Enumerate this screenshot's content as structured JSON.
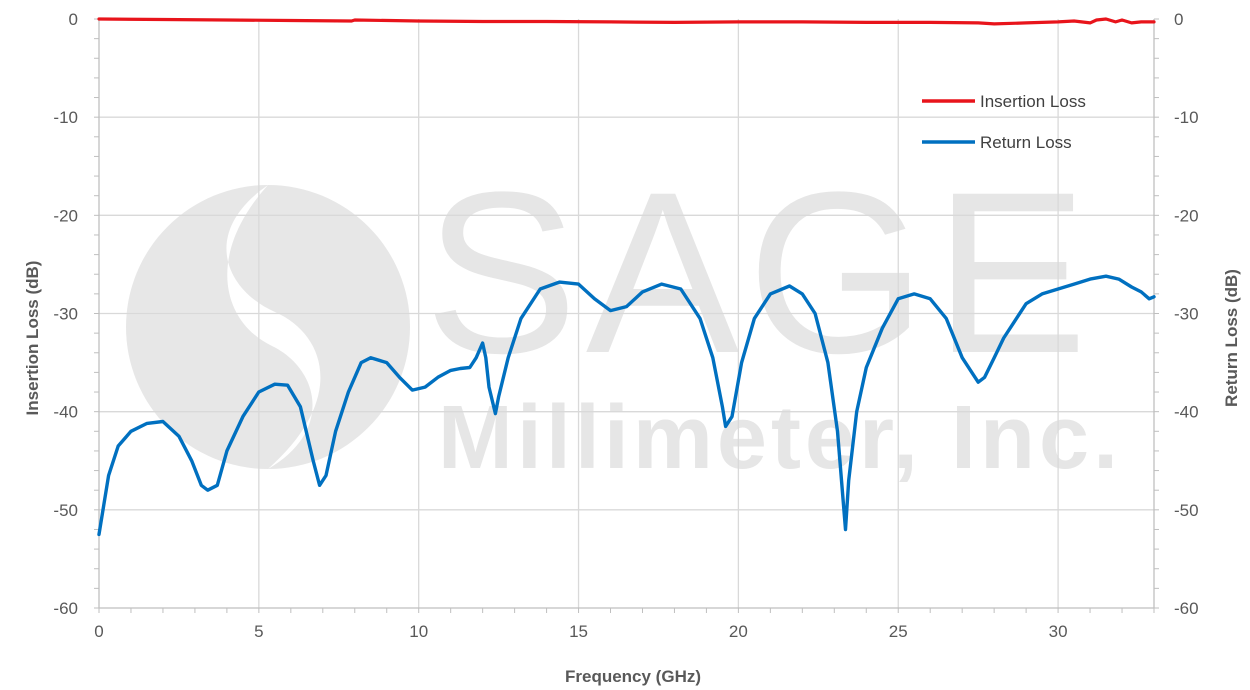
{
  "chart_data": {
    "type": "line",
    "title": "",
    "xlabel": "Frequency (GHz)",
    "ylabel_left": "Insertion Loss (dB)",
    "ylabel_right": "Return Loss (dB)",
    "xlim": [
      0,
      33
    ],
    "ylim": [
      -60,
      0
    ],
    "x_ticks": [
      "0",
      "5",
      "10",
      "15",
      "20",
      "25",
      "30"
    ],
    "y_ticks": [
      "0",
      "-10",
      "-20",
      "-30",
      "-40",
      "-50",
      "-60"
    ],
    "grid": true,
    "legend_position": "top-right",
    "watermark": {
      "line1": "SAGE",
      "line2": "Millimeter, Inc."
    },
    "series": [
      {
        "name": "Insertion Loss",
        "color": "#E8141B",
        "axis": "left",
        "x": [
          0,
          2,
          4,
          6,
          7.9,
          8,
          10,
          12,
          14,
          16,
          18,
          20,
          22,
          24,
          26,
          27.5,
          28,
          29,
          30,
          30.5,
          31,
          31.2,
          31.5,
          31.8,
          32,
          32.3,
          32.6,
          33
        ],
        "y": [
          0,
          -0.05,
          -0.1,
          -0.15,
          -0.2,
          -0.1,
          -0.2,
          -0.25,
          -0.25,
          -0.3,
          -0.35,
          -0.3,
          -0.3,
          -0.35,
          -0.35,
          -0.4,
          -0.5,
          -0.4,
          -0.3,
          -0.2,
          -0.4,
          -0.1,
          0,
          -0.3,
          -0.1,
          -0.4,
          -0.3,
          -0.3
        ]
      },
      {
        "name": "Return Loss",
        "color": "#0070C0",
        "axis": "right",
        "x": [
          0,
          0.15,
          0.3,
          0.6,
          1.0,
          1.5,
          2.0,
          2.5,
          2.9,
          3.2,
          3.4,
          3.7,
          4.0,
          4.5,
          5.0,
          5.5,
          5.9,
          6.3,
          6.7,
          6.9,
          7.1,
          7.4,
          7.8,
          8.2,
          8.5,
          9.0,
          9.4,
          9.8,
          10.2,
          10.6,
          11.0,
          11.3,
          11.6,
          11.8,
          12.0,
          12.1,
          12.2,
          12.4,
          12.5,
          12.8,
          13.2,
          13.8,
          14.4,
          15.0,
          15.5,
          16.0,
          16.5,
          17.0,
          17.6,
          18.2,
          18.8,
          19.2,
          19.5,
          19.6,
          19.8,
          20.1,
          20.5,
          21.0,
          21.6,
          22.0,
          22.4,
          22.8,
          23.1,
          23.3,
          23.35,
          23.45,
          23.7,
          24.0,
          24.5,
          25.0,
          25.5,
          26.0,
          26.5,
          27.0,
          27.5,
          27.7,
          28.0,
          28.3,
          28.6,
          29.0,
          29.5,
          30.0,
          30.5,
          31.0,
          31.5,
          31.9,
          32.3,
          32.6,
          32.85,
          33.0
        ],
        "y": [
          -52.5,
          -49.5,
          -46.5,
          -43.5,
          -42.0,
          -41.2,
          -41.0,
          -42.5,
          -45.0,
          -47.5,
          -48.0,
          -47.5,
          -44.0,
          -40.5,
          -38.0,
          -37.2,
          -37.3,
          -39.5,
          -45.0,
          -47.5,
          -46.5,
          -42.0,
          -38.0,
          -35.0,
          -34.5,
          -35.0,
          -36.5,
          -37.8,
          -37.5,
          -36.5,
          -35.8,
          -35.6,
          -35.5,
          -34.5,
          -33.0,
          -34.5,
          -37.5,
          -40.2,
          -38.5,
          -34.5,
          -30.5,
          -27.5,
          -26.8,
          -27.0,
          -28.5,
          -29.7,
          -29.3,
          -27.8,
          -27.0,
          -27.5,
          -30.5,
          -34.5,
          -39.5,
          -41.5,
          -40.5,
          -35.0,
          -30.5,
          -28.0,
          -27.2,
          -28.0,
          -30.0,
          -35.0,
          -42.0,
          -50.0,
          -52.0,
          -47.0,
          -40.0,
          -35.5,
          -31.5,
          -28.5,
          -28.0,
          -28.5,
          -30.5,
          -34.5,
          -37.0,
          -36.5,
          -34.5,
          -32.5,
          -31.0,
          -29.0,
          -28.0,
          -27.5,
          -27.0,
          -26.5,
          -26.2,
          -26.5,
          -27.3,
          -27.8,
          -28.5,
          -28.3
        ]
      }
    ]
  }
}
